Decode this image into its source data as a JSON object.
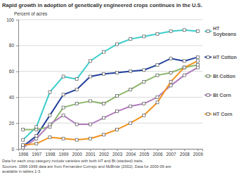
{
  "chart_data": {
    "type": "line",
    "title": "Rapid growth in adoption of genetically engineered crops continues in the U.S.",
    "y_label": "Percent of acres",
    "categories": [
      "1996",
      "1997",
      "1998",
      "1999",
      "2000",
      "2001",
      "2002",
      "2003",
      "2004",
      "2005",
      "2006",
      "2007",
      "2008",
      "2009"
    ],
    "series": [
      {
        "name": "HT Soybeans",
        "color": "#3ccccc",
        "marker": "square",
        "values": [
          7,
          17,
          44,
          56,
          54,
          68,
          75,
          81,
          85,
          87,
          89,
          91,
          92,
          91
        ]
      },
      {
        "name": "HT Cotton",
        "color": "#22409a",
        "marker": "square",
        "values": [
          2,
          10,
          26,
          42,
          46,
          56,
          58,
          59,
          60,
          61,
          65,
          70,
          68,
          71
        ]
      },
      {
        "name": "Bt Cotton",
        "color": "#8cb56c",
        "marker": "square",
        "values": [
          15,
          15,
          17,
          32,
          35,
          37,
          35,
          41,
          46,
          52,
          57,
          59,
          63,
          65
        ]
      },
      {
        "name": "Bt Corn",
        "color": "#b07cbc",
        "marker": "square",
        "values": [
          1,
          8,
          19,
          26,
          19,
          19,
          24,
          29,
          33,
          35,
          40,
          49,
          57,
          63
        ]
      },
      {
        "name": "HT Corn",
        "color": "#f0921c",
        "marker": "square",
        "values": [
          3,
          4,
          9,
          8,
          7,
          8,
          11,
          15,
          20,
          26,
          36,
          52,
          63,
          68
        ]
      }
    ],
    "ylim": [
      0,
      100
    ],
    "yticks": [
      0,
      20,
      40,
      60,
      80,
      100
    ],
    "grid": true,
    "legend": "right",
    "notes": [
      "Data for each crop category include varieties with both HT and Bt (stacked) traits.",
      "Sources: 1996-1999 data are from Fernandez-Cornejo and McBride (2002). Data for 2000-09 are",
      "available in tables 1-3."
    ]
  }
}
